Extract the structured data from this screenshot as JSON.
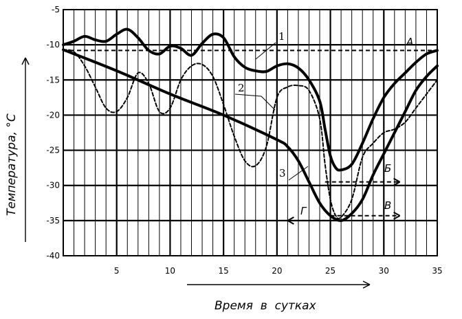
{
  "chart_data": {
    "type": "line",
    "title": "",
    "xlabel": "Время  в  сутках",
    "ylabel": "Температура, °C",
    "xlim": [
      0,
      35
    ],
    "ylim": [
      -40,
      -5
    ],
    "x_ticks": [
      5,
      10,
      15,
      20,
      25,
      30,
      35
    ],
    "y_ticks": [
      -5,
      -10,
      -15,
      -20,
      -25,
      -30,
      -35,
      -40
    ],
    "grid": true,
    "series": [
      {
        "name": "1",
        "style": "solid-thick",
        "x": [
          0,
          1,
          2,
          3,
          4,
          5,
          6,
          7,
          8,
          9,
          10,
          11,
          12,
          13,
          14,
          15,
          16,
          17,
          18,
          19,
          20,
          21,
          22,
          23,
          24,
          24.5,
          25,
          25.5,
          26,
          27,
          28,
          29,
          30,
          31,
          32,
          33,
          34,
          35
        ],
        "y": [
          -10,
          -9.5,
          -8.8,
          -9.3,
          -9.5,
          -8.5,
          -7.8,
          -9,
          -10.8,
          -11.3,
          -10.2,
          -10.5,
          -11.5,
          -9.8,
          -8.5,
          -9,
          -11.7,
          -13.2,
          -13.7,
          -13.8,
          -13,
          -12.7,
          -13.3,
          -15,
          -18,
          -22,
          -25.8,
          -27.5,
          -27.8,
          -27,
          -24,
          -20.5,
          -17.5,
          -15.5,
          -14,
          -12.5,
          -11.3,
          -10.8
        ]
      },
      {
        "name": "2",
        "style": "dashed",
        "x": [
          0,
          1,
          2,
          3,
          4,
          5,
          6,
          7,
          8,
          9,
          10,
          11,
          12,
          13,
          14,
          15,
          16,
          17,
          18,
          19,
          20,
          21,
          22,
          23,
          24,
          24.5,
          25,
          25.5,
          26,
          27,
          28,
          29,
          30,
          31,
          32,
          33,
          34,
          35
        ],
        "y": [
          -10.7,
          -11,
          -13,
          -16,
          -19,
          -19.5,
          -17.5,
          -14,
          -15.5,
          -19.5,
          -19,
          -15,
          -13,
          -12.8,
          -14.5,
          -18.5,
          -23,
          -26.5,
          -27.2,
          -24.5,
          -17.5,
          -16,
          -15.8,
          -16.5,
          -20.5,
          -27,
          -32,
          -34.3,
          -34.5,
          -32,
          -26,
          -24,
          -22.5,
          -22,
          -21,
          -19,
          -17,
          -15
        ]
      },
      {
        "name": "3",
        "style": "solid-thick",
        "x": [
          0,
          5,
          10,
          15,
          20,
          21,
          22,
          23,
          24,
          25,
          26,
          27,
          28,
          29,
          30,
          31,
          32,
          33,
          34,
          35
        ],
        "y": [
          -10.7,
          -13.7,
          -17,
          -20,
          -23.5,
          -24.5,
          -26.5,
          -29.5,
          -32.5,
          -34.3,
          -35,
          -34,
          -32,
          -28.5,
          -25.5,
          -22.5,
          -19.5,
          -16.5,
          -14.5,
          -13
        ]
      }
    ],
    "reference_lines": [
      {
        "label": "А",
        "y": -10.8,
        "x_from": 0,
        "x_to": 35,
        "direction": "none"
      },
      {
        "label": "Б",
        "y": -29.5,
        "x_from": 24.5,
        "x_to": 31.5,
        "direction": "right"
      },
      {
        "label": "В",
        "y": -34.3,
        "x_from": 25,
        "x_to": 31.5,
        "direction": "right"
      },
      {
        "label": "Г",
        "y": -35,
        "x_from": 21,
        "x_to": 25.5,
        "direction": "left"
      }
    ],
    "curve_labels": [
      "1",
      "2",
      "3"
    ],
    "arrows": [
      "x-axis-direction-arrow",
      "y-axis-direction-arrow"
    ]
  }
}
